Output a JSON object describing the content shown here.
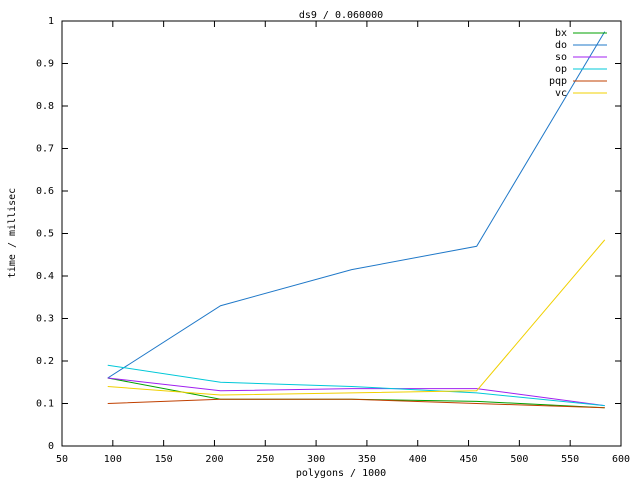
{
  "chart_data": {
    "type": "line",
    "title": "ds9 / 0.060000",
    "x_label": "polygons / 1000",
    "y_label": "time / millisec",
    "x": [
      95,
      206,
      335,
      458,
      584
    ],
    "series": [
      {
        "name": "bx",
        "color": "#00a000",
        "values": [
          0.16,
          0.11,
          0.11,
          0.105,
          0.09
        ]
      },
      {
        "name": "do",
        "color": "#1f78c8",
        "values": [
          0.16,
          0.33,
          0.415,
          0.47,
          0.975
        ]
      },
      {
        "name": "so",
        "color": "#a020f0",
        "values": [
          0.16,
          0.13,
          0.135,
          0.135,
          0.095
        ]
      },
      {
        "name": "op",
        "color": "#00c8d8",
        "values": [
          0.19,
          0.15,
          0.14,
          0.125,
          0.095
        ]
      },
      {
        "name": "pqp",
        "color": "#c04000",
        "values": [
          0.1,
          0.11,
          0.11,
          0.1,
          0.09
        ]
      },
      {
        "name": "vc",
        "color": "#f0d000",
        "values": [
          0.14,
          0.12,
          0.125,
          0.13,
          0.485
        ]
      }
    ],
    "xlim": [
      50,
      600
    ],
    "xticks": [
      50,
      100,
      150,
      200,
      250,
      300,
      350,
      400,
      450,
      500,
      550,
      600
    ],
    "ylim": [
      0,
      1
    ],
    "yticks": [
      0,
      0.1,
      0.2,
      0.3,
      0.4,
      0.5,
      0.6,
      0.7,
      0.8,
      0.9,
      1
    ],
    "legend": "top-right"
  }
}
